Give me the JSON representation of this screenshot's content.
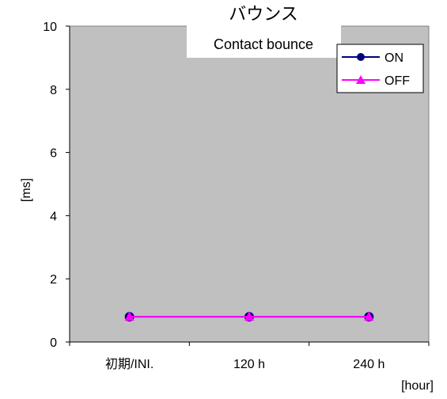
{
  "chart_data": {
    "type": "line",
    "title": "バウンス",
    "subtitle": "Contact bounce",
    "xlabel": "[hour]",
    "ylabel": "[ms]",
    "categories": [
      "初期/INI.",
      "120 h",
      "240 h"
    ],
    "ylim": [
      0,
      10
    ],
    "yticks": [
      0,
      2,
      4,
      6,
      8,
      10
    ],
    "grid": false,
    "legend_position": "top-right",
    "plot_background": "#c0c0c0",
    "series": [
      {
        "name": "ON",
        "values": [
          0.8,
          0.8,
          0.8
        ],
        "color": "#000080",
        "marker": "circle"
      },
      {
        "name": "OFF",
        "values": [
          0.8,
          0.8,
          0.8
        ],
        "color": "#ff00ff",
        "marker": "triangle"
      }
    ]
  }
}
